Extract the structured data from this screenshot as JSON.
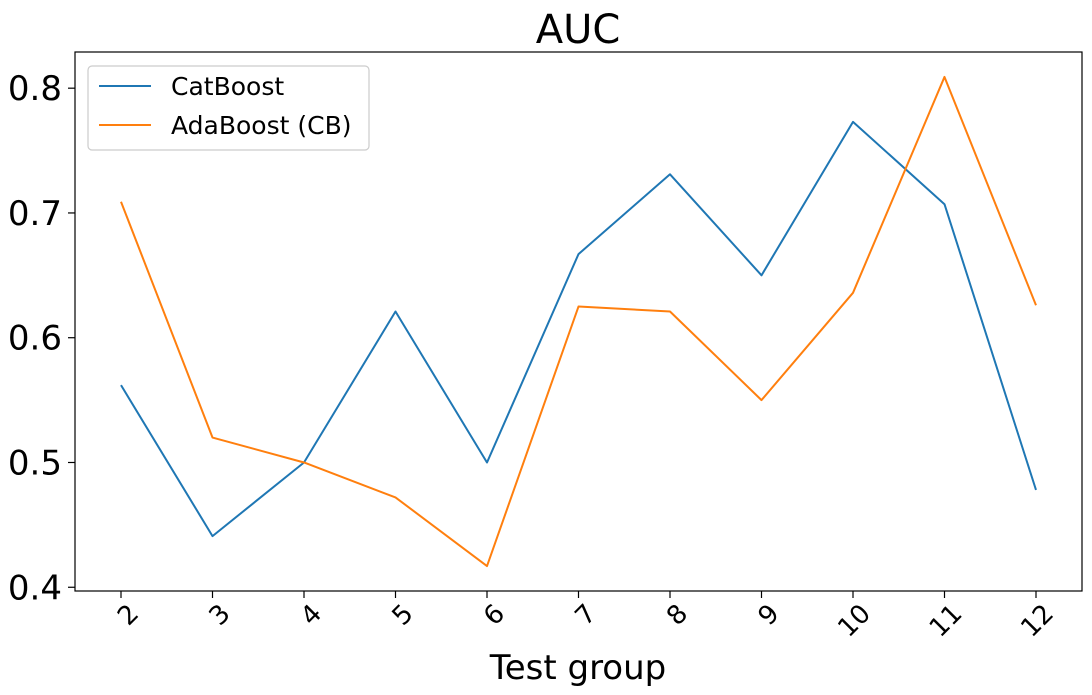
{
  "chart_data": {
    "type": "line",
    "title": "AUC",
    "xlabel": "Test group",
    "ylabel": "",
    "categories": [
      "2",
      "3",
      "4",
      "5",
      "6",
      "7",
      "8",
      "9",
      "10",
      "11",
      "12"
    ],
    "series": [
      {
        "name": "CatBoost",
        "color": "#1f77b4",
        "values": [
          0.562,
          0.441,
          0.5,
          0.621,
          0.5,
          0.667,
          0.731,
          0.65,
          0.773,
          0.707,
          0.478
        ]
      },
      {
        "name": "AdaBoost (CB)",
        "color": "#ff7f0e",
        "values": [
          0.709,
          0.52,
          0.5,
          0.472,
          0.417,
          0.625,
          0.621,
          0.55,
          0.636,
          0.809,
          0.626
        ]
      }
    ],
    "ylim": [
      0.397,
      0.829
    ],
    "yticks": [
      "0.4",
      "0.5",
      "0.6",
      "0.7",
      "0.8"
    ],
    "ytick_values": [
      0.4,
      0.5,
      0.6,
      0.7,
      0.8
    ],
    "grid": false,
    "legend_position": "top-left"
  }
}
